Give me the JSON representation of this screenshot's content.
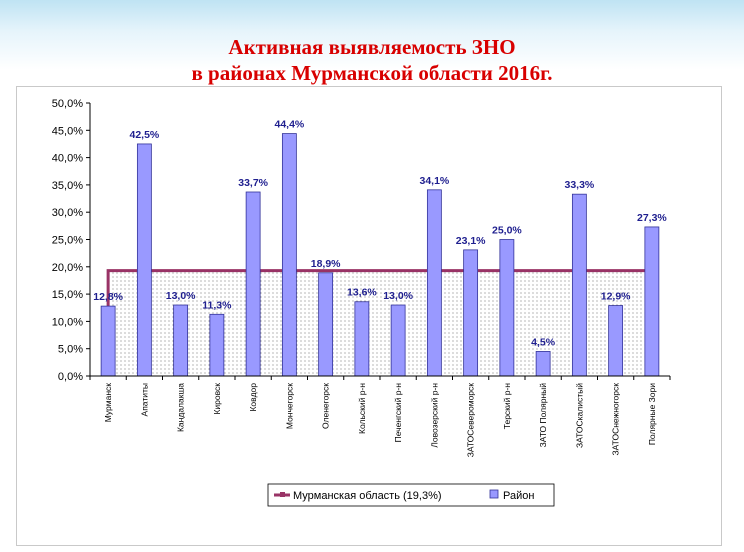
{
  "title": {
    "line1": "Активная выявляемость ЗНО",
    "line2": "в районах Мурманской области 2016г."
  },
  "chart_data": {
    "type": "bar",
    "title": "Активная выявляемость ЗНО в районах Мурманской области 2016г.",
    "categories": [
      "Мурманск",
      "Апатиты",
      "Кандалакша",
      "Кировск",
      "Ковдор",
      "Мончегорск",
      "Оленегорск",
      "Кольский р-н",
      "Печенгский р-н",
      "Ловозерский р-н",
      "ЗАТО Североморск",
      "Терский р-н",
      "ЗАТО Полярный",
      "ЗАТО Скалистый",
      "ЗАТО Снежногорск",
      "Полярные Зори"
    ],
    "category_labels": [
      "Мурманск",
      "Апатиты",
      "Кандалакша",
      "Кировск",
      "Ковдор",
      "Мончегорск",
      "Оленегорск",
      "Кольский р-н",
      "Печенгский р-н",
      "Ловозерский р-н",
      "ЗАТОСевероморск",
      "Терский р-н",
      "ЗАТО Полярный",
      "ЗАТОСкалистый",
      "ЗАТОСнежногорск",
      "Полярные Зори"
    ],
    "series": [
      {
        "name": "Район",
        "values": [
          12.8,
          42.5,
          13.0,
          11.3,
          33.7,
          44.4,
          18.9,
          13.6,
          13.0,
          34.1,
          23.1,
          25.0,
          4.5,
          33.3,
          12.9,
          27.3
        ],
        "labels": [
          "12,8%",
          "42,5%",
          "13,0%",
          "11,3%",
          "33,7%",
          "44,4%",
          "18,9%",
          "13,6%",
          "13,0%",
          "34,1%",
          "23,1%",
          "25,0%",
          "4,5%",
          "33,3%",
          "12,9%",
          "27,3%"
        ]
      }
    ],
    "reference": {
      "name": "Мурманская область (19,3%)",
      "value": 19.3
    },
    "ylim": [
      0,
      50
    ],
    "yticks": [
      0,
      5,
      10,
      15,
      20,
      25,
      30,
      35,
      40,
      45,
      50
    ],
    "ytick_labels": [
      "0,0%",
      "5,0%",
      "10,0%",
      "15,0%",
      "20,0%",
      "25,0%",
      "30,0%",
      "35,0%",
      "40,0%",
      "45,0%",
      "50,0%"
    ],
    "legend_placement": "bottom",
    "grid": false,
    "colors": {
      "bar": "#9999ff",
      "bar_stroke": "#333399",
      "reference": "#993366",
      "label": "#1f1f8f",
      "title": "#d80000"
    }
  }
}
